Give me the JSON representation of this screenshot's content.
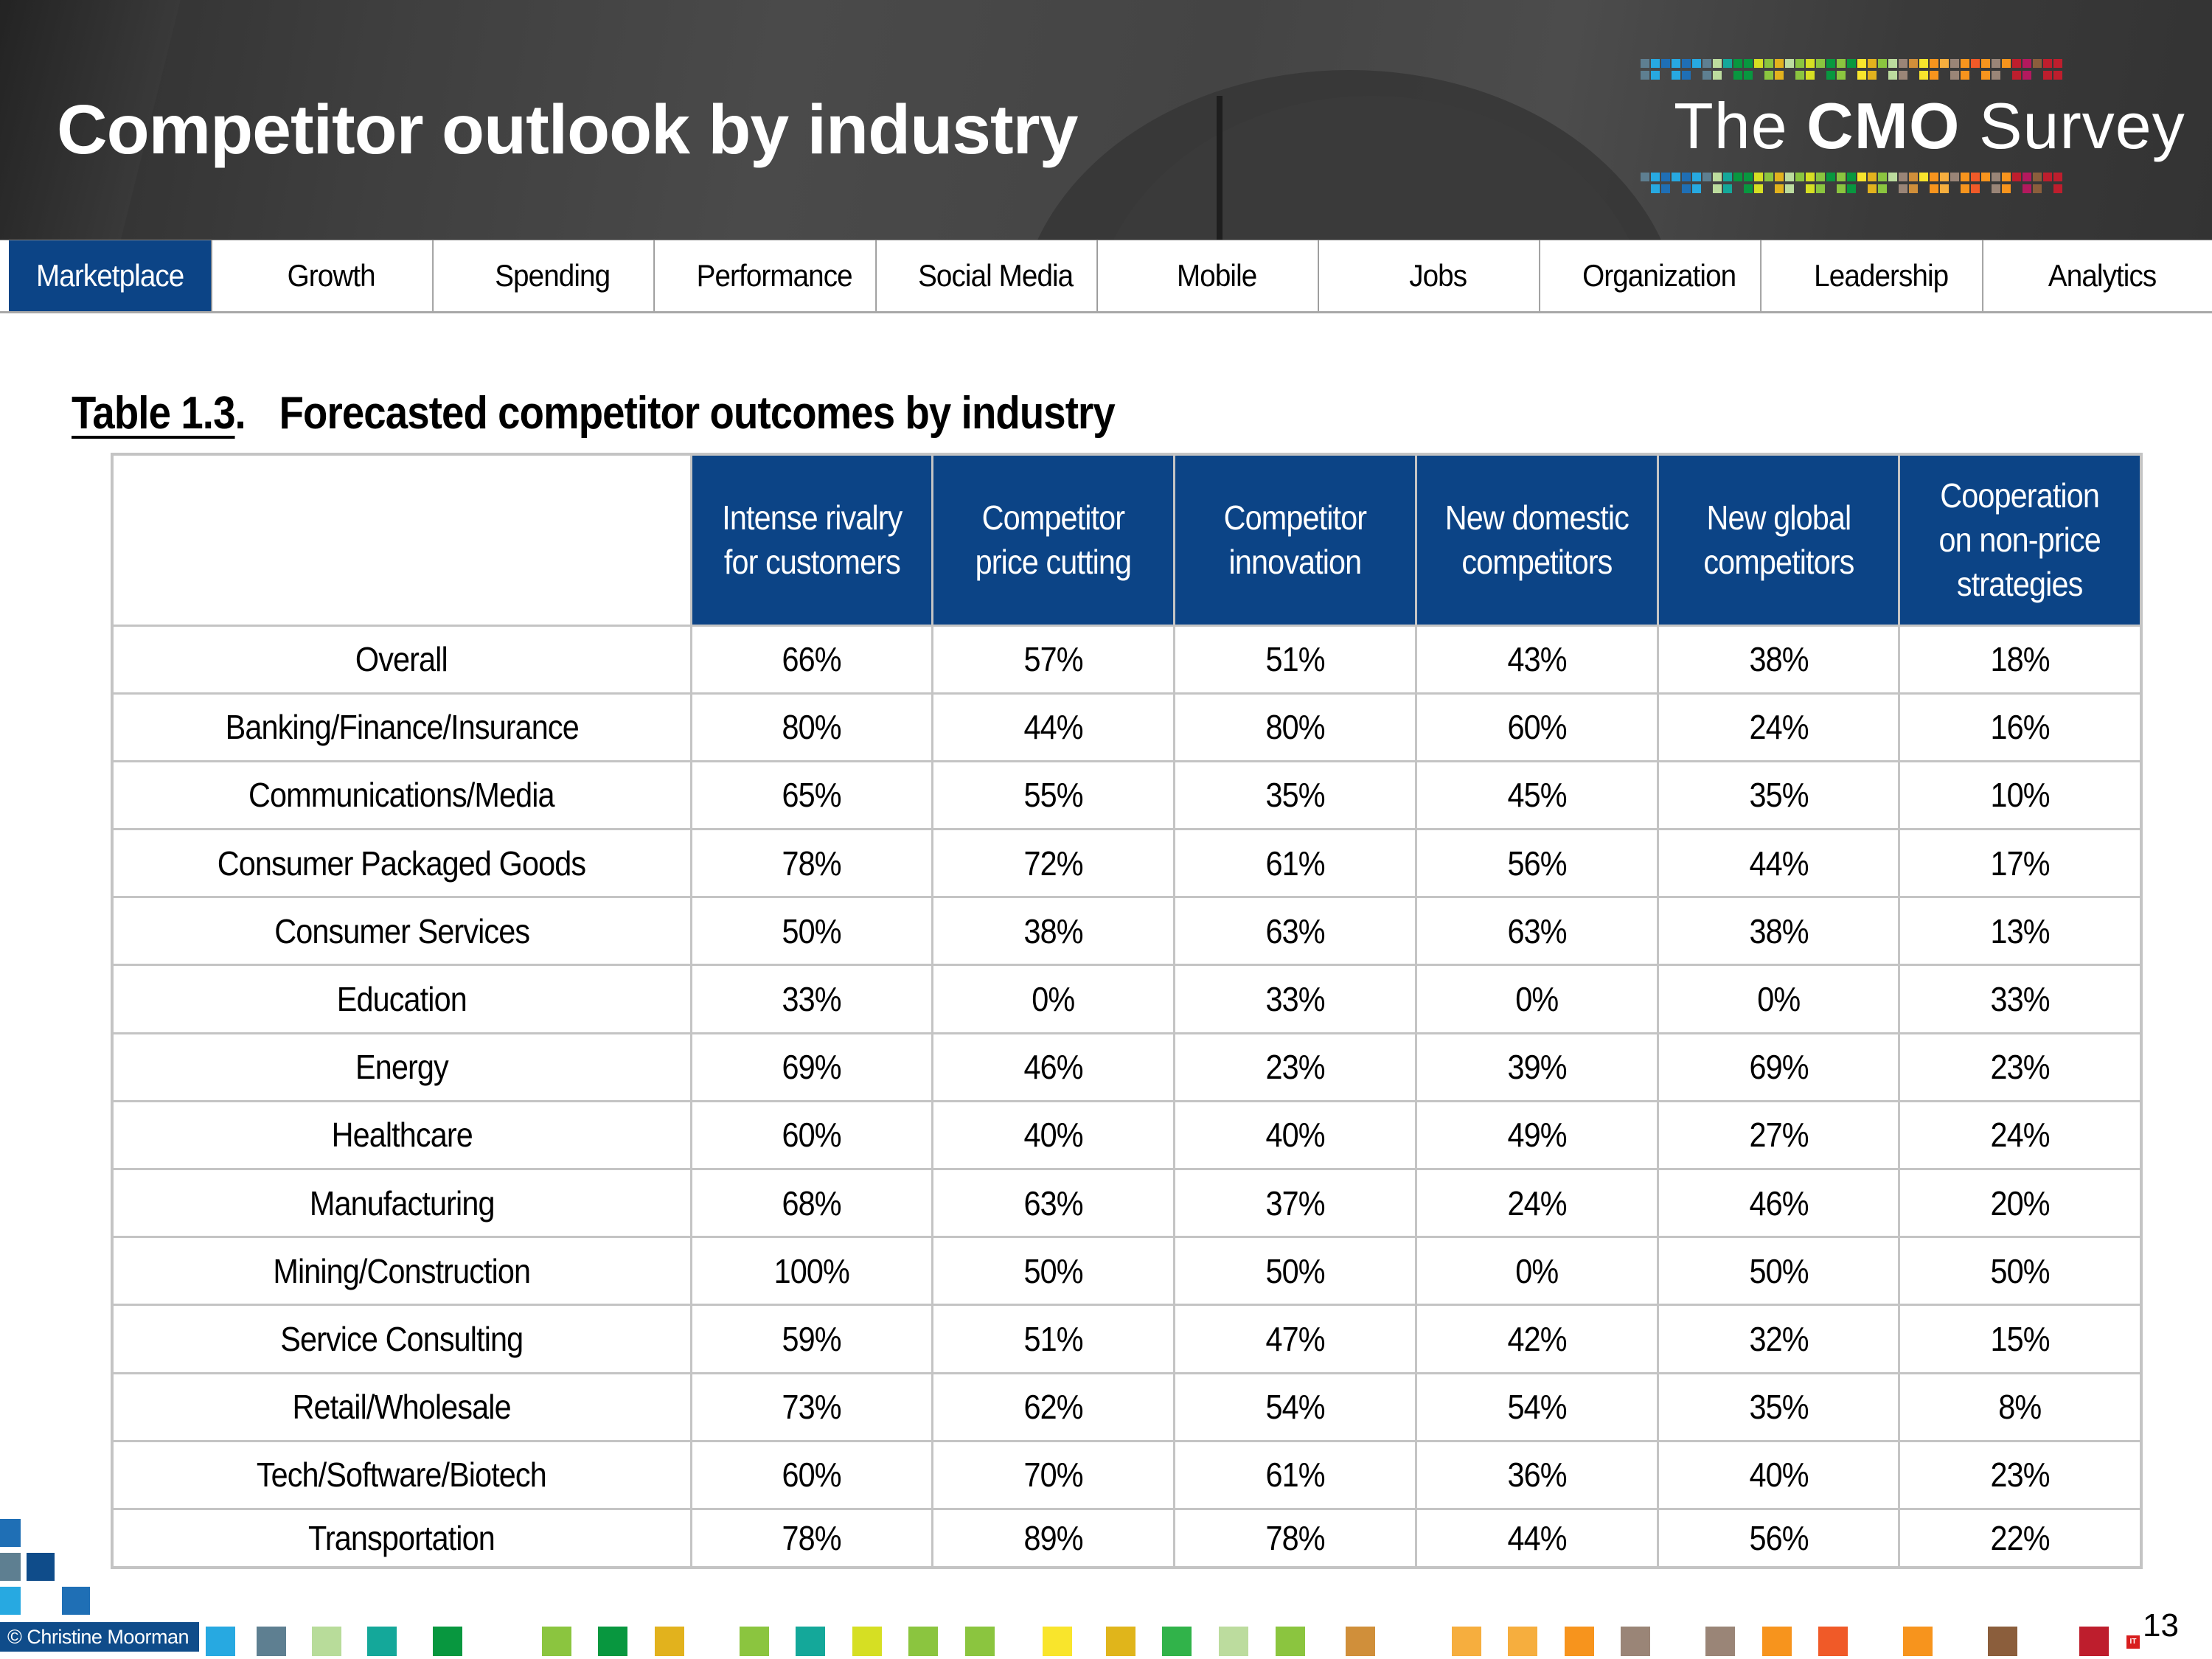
{
  "header": {
    "title": "Competitor outlook by industry",
    "logo": {
      "prefix": "The ",
      "bold": "CMO",
      "suffix": " Survey"
    }
  },
  "nav": {
    "active_index": 0,
    "tabs": [
      {
        "label": "Marketplace"
      },
      {
        "label": "Growth"
      },
      {
        "label": "Spending"
      },
      {
        "label": "Performance"
      },
      {
        "label": "Social Media"
      },
      {
        "label": "Mobile"
      },
      {
        "label": "Jobs"
      },
      {
        "label": "Organization"
      },
      {
        "label": "Leadership"
      },
      {
        "label": "Analytics"
      }
    ]
  },
  "table": {
    "number": "Table 1.3",
    "separator": ".",
    "title": "Forecasted competitor outcomes by industry",
    "columns": [
      "",
      "Intense rivalry for customers",
      "Competitor price cutting",
      "Competitor innovation",
      "New domestic competitors",
      "New global competitors",
      "Cooperation on non-price strategies"
    ],
    "rows": [
      {
        "industry": "Overall",
        "values": [
          "66%",
          "57%",
          "51%",
          "43%",
          "38%",
          "18%"
        ]
      },
      {
        "industry": "Banking/Finance/Insurance",
        "values": [
          "80%",
          "44%",
          "80%",
          "60%",
          "24%",
          "16%"
        ]
      },
      {
        "industry": "Communications/Media",
        "values": [
          "65%",
          "55%",
          "35%",
          "45%",
          "35%",
          "10%"
        ]
      },
      {
        "industry": "Consumer Packaged Goods",
        "values": [
          "78%",
          "72%",
          "61%",
          "56%",
          "44%",
          "17%"
        ]
      },
      {
        "industry": "Consumer Services",
        "values": [
          "50%",
          "38%",
          "63%",
          "63%",
          "38%",
          "13%"
        ]
      },
      {
        "industry": "Education",
        "values": [
          "33%",
          "0%",
          "33%",
          "0%",
          "0%",
          "33%"
        ]
      },
      {
        "industry": "Energy",
        "values": [
          "69%",
          "46%",
          "23%",
          "39%",
          "69%",
          "23%"
        ]
      },
      {
        "industry": "Healthcare",
        "values": [
          "60%",
          "40%",
          "40%",
          "49%",
          "27%",
          "24%"
        ]
      },
      {
        "industry": "Manufacturing",
        "values": [
          "68%",
          "63%",
          "37%",
          "24%",
          "46%",
          "20%"
        ]
      },
      {
        "industry": "Mining/Construction",
        "values": [
          "100%",
          "50%",
          "50%",
          "0%",
          "50%",
          "50%"
        ]
      },
      {
        "industry": "Service Consulting",
        "values": [
          "59%",
          "51%",
          "47%",
          "42%",
          "32%",
          "15%"
        ]
      },
      {
        "industry": "Retail/Wholesale",
        "values": [
          "73%",
          "62%",
          "54%",
          "54%",
          "35%",
          "8%"
        ]
      },
      {
        "industry": "Tech/Software/Biotech",
        "values": [
          "60%",
          "70%",
          "61%",
          "36%",
          "40%",
          "23%"
        ]
      },
      {
        "industry": "Transportation",
        "values": [
          "78%",
          "89%",
          "78%",
          "44%",
          "56%",
          "22%"
        ]
      }
    ]
  },
  "footer": {
    "copyright": "© Christine Moorman",
    "page_number": "13",
    "watermark": "IT"
  },
  "colors": {
    "header_bg": "#424242",
    "accent_blue": "#0c4486",
    "table_border": "#c4c4c4",
    "footer_squares": [
      "#27a9e1",
      "#5e7f91",
      "#b8dc9a",
      "#14a89a",
      "#08973f",
      "#8bc53f",
      "#08973f",
      "#e2b21d",
      "#8bc53f",
      "#14a89a",
      "#d6df23",
      "#8bc53f",
      "#8bc53f",
      "#f9e52c",
      "#e0b51b",
      "#31b34a",
      "#bcdc9e",
      "#8bc53f",
      "#d08f3a",
      "#f6ae3e",
      "#f6ae3e",
      "#f7941d",
      "#9a8577",
      "#9a8577",
      "#f7941d",
      "#f05a28",
      "#f7941d",
      "#8b5e3c",
      "#be1e2d"
    ]
  }
}
